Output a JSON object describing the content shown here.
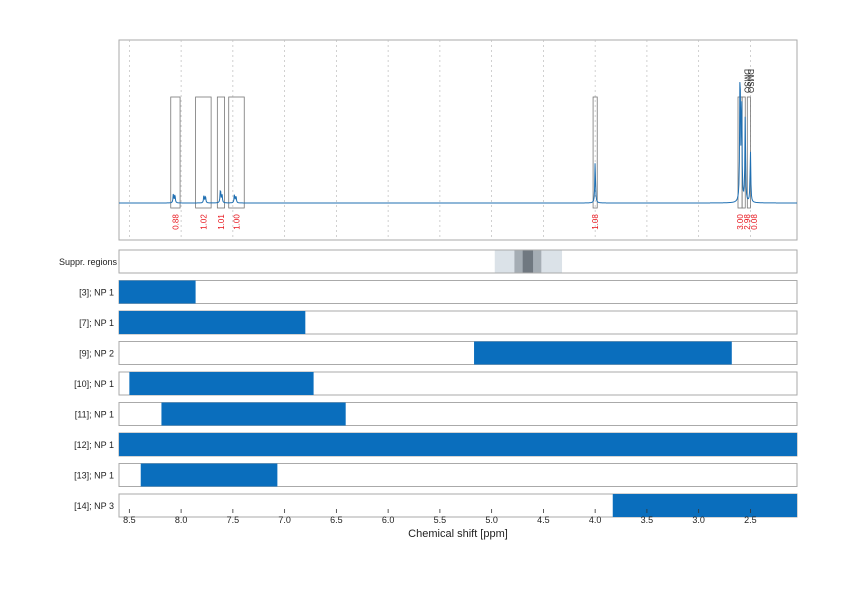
{
  "chart_data": {
    "type": "nmr_spectrum_with_region_bars",
    "xlabel": "Chemical shift [ppm]",
    "x_axis": {
      "reversed": true,
      "range": [
        8.6,
        2.05
      ],
      "ticks": [
        8.5,
        8.0,
        7.5,
        7.0,
        6.5,
        6.0,
        5.5,
        5.0,
        4.5,
        4.0,
        3.5,
        3.0,
        2.5
      ],
      "tick_labels": [
        "8.5",
        "8.0",
        "7.5",
        "7.0",
        "6.5",
        "6.0",
        "5.5",
        "5.0",
        "4.5",
        "4.0",
        "3.5",
        "3.0",
        "2.5"
      ]
    },
    "grid": true,
    "spectrum": {
      "color": "#1f6fb2",
      "peaks": [
        {
          "ppm": 8.075,
          "height": 0.06
        },
        {
          "ppm": 8.06,
          "height": 0.06
        },
        {
          "ppm": 7.78,
          "height": 0.05
        },
        {
          "ppm": 7.765,
          "height": 0.05
        },
        {
          "ppm": 7.62,
          "height": 0.1
        },
        {
          "ppm": 7.605,
          "height": 0.06
        },
        {
          "ppm": 7.485,
          "height": 0.06
        },
        {
          "ppm": 7.47,
          "height": 0.05
        },
        {
          "ppm": 4.0,
          "height": 0.28
        },
        {
          "ppm": 2.6,
          "height": 0.97
        },
        {
          "ppm": 2.585,
          "height": 0.72
        },
        {
          "ppm": 2.55,
          "height": 0.57
        },
        {
          "ppm": 2.5,
          "height": 0.35
        }
      ]
    },
    "integrals": [
      {
        "label": "0.88",
        "from": 8.1,
        "to": 8.01
      },
      {
        "label": "1.02",
        "from": 7.86,
        "to": 7.71
      },
      {
        "label": "1.01",
        "from": 7.65,
        "to": 7.58
      },
      {
        "label": "1.00",
        "from": 7.54,
        "to": 7.39
      },
      {
        "label": "1.08",
        "from": 4.02,
        "to": 3.98
      },
      {
        "label": "3.00",
        "from": 2.62,
        "to": 2.58
      },
      {
        "label": "2.98",
        "from": 2.58,
        "to": 2.55
      },
      {
        "label": "0.08",
        "from": 2.53,
        "to": 2.5
      }
    ],
    "annotations": [
      "DMSO",
      "DMSO"
    ],
    "suppressed_regions": {
      "label": "Suppr. regions",
      "bands": [
        {
          "from": 4.97,
          "to": 4.32,
          "shade": "#dbe2e8"
        },
        {
          "from": 4.78,
          "to": 4.52,
          "shade": "#a5adb4"
        },
        {
          "from": 4.7,
          "to": 4.6,
          "shade": "#707880"
        }
      ]
    },
    "series": [
      {
        "name": "[3]; NP 1",
        "from": 8.6,
        "to": 7.86
      },
      {
        "name": "[7]; NP 1",
        "from": 8.6,
        "to": 6.8
      },
      {
        "name": "[9]; NP 2",
        "from": 5.17,
        "to": 2.68
      },
      {
        "name": "[10]; NP 1",
        "from": 8.5,
        "to": 6.72
      },
      {
        "name": "[11]; NP 1",
        "from": 8.19,
        "to": 6.41
      },
      {
        "name": "[12]; NP 1",
        "from": 8.6,
        "to": 2.05
      },
      {
        "name": "[13]; NP 1",
        "from": 8.39,
        "to": 7.07
      },
      {
        "name": "[14]; NP 3",
        "from": 3.83,
        "to": 2.05
      }
    ],
    "colors": {
      "bar": "#0a6ebd",
      "integral_label": "#e8141c",
      "frame": "#aaaaaa",
      "grid": "#bdbdbd",
      "integral_box": "#777777"
    }
  }
}
